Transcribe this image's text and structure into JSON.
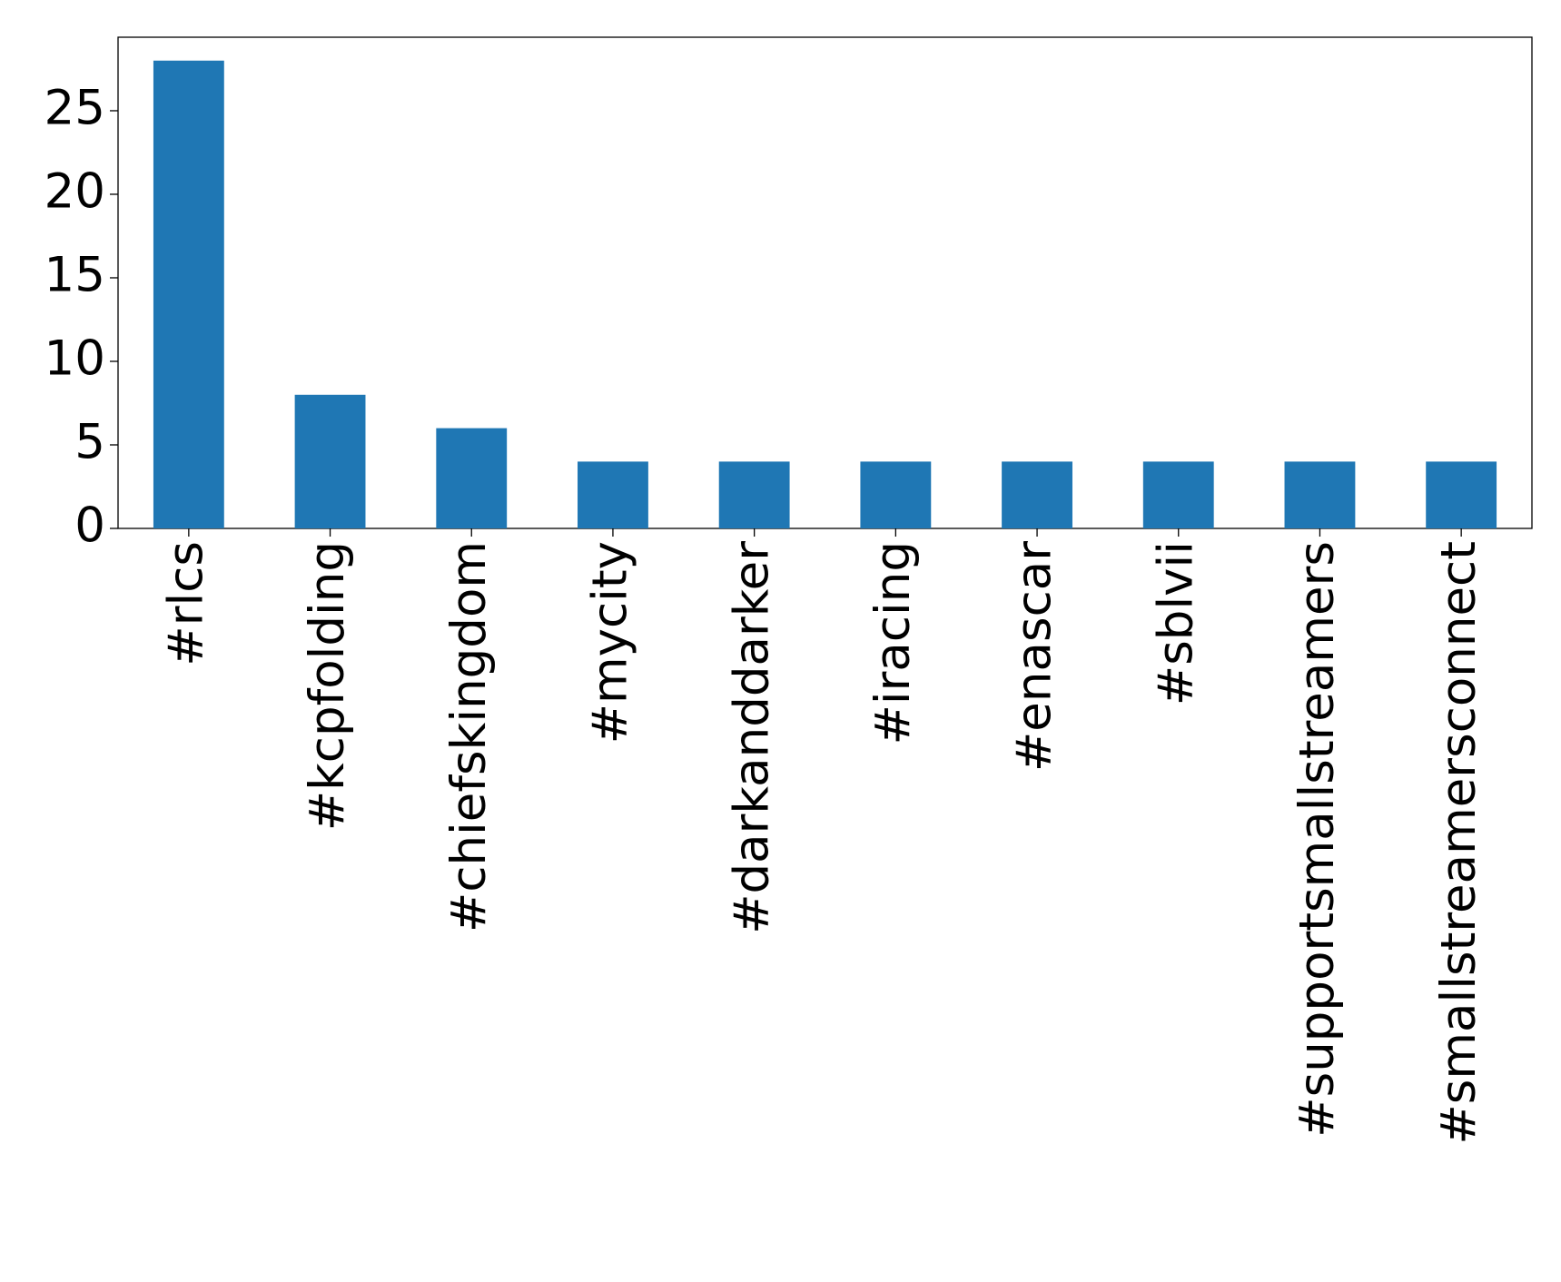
{
  "chart_data": {
    "type": "bar",
    "categories": [
      "#rlcs",
      "#kcpfolding",
      "#chiefskingdom",
      "#mycity",
      "#darkanddarker",
      "#iracing",
      "#enascar",
      "#sblvii",
      "#supportsmallstreamers",
      "#smallstreamersconnect"
    ],
    "values": [
      28,
      8,
      6,
      4,
      4,
      4,
      4,
      4,
      4,
      4
    ],
    "color": "#1f77b4",
    "ylim": [
      0,
      29.4
    ],
    "yticks": [
      0,
      5,
      10,
      15,
      20,
      25
    ],
    "grid": false
  }
}
